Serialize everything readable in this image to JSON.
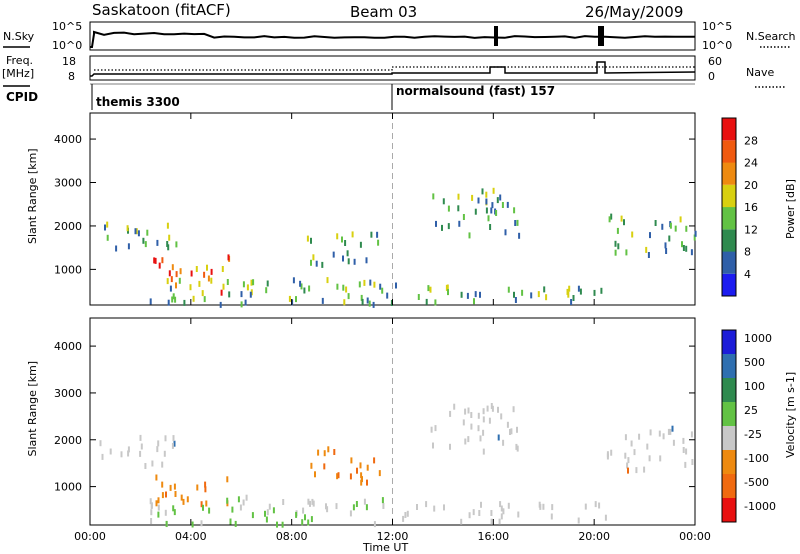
{
  "header": {
    "station": "Saskatoon (fitACF)",
    "beam": "Beam 03",
    "date": "26/May/2009"
  },
  "aux": {
    "nsky_label": "N.Sky",
    "nsky_ticks": [
      "10^5",
      "10^0"
    ],
    "nsearch_label": "N.Search",
    "nsearch_ticks": [
      "10^5",
      "10^0"
    ],
    "freq_label": "Freq.",
    "freq_unit": "[MHz]",
    "freq_ticks": [
      "18",
      "8"
    ],
    "nave_label": "Nave",
    "nave_ticks": [
      "60",
      "0"
    ],
    "cpid_label": "CPID",
    "cpid_programs": [
      {
        "name": "themis 3300",
        "start_hour": 0
      },
      {
        "name": "normalsound (fast) 157",
        "start_hour": 12
      }
    ]
  },
  "x_axis": {
    "label": "Time UT",
    "ticks": [
      "00:00",
      "04:00",
      "08:00",
      "12:00",
      "16:00",
      "20:00",
      "00:00"
    ],
    "range_hours": [
      0,
      24
    ]
  },
  "chart_data": [
    {
      "type": "heatmap",
      "title": "",
      "xlabel": "",
      "ylabel": "Slant Range [km]",
      "yticks": [
        "1000",
        "2000",
        "3000",
        "4000"
      ],
      "ylim": [
        180,
        4600
      ],
      "colorbar": {
        "label": "Power [dB]",
        "ticks": [
          "4",
          "8",
          "12",
          "16",
          "20",
          "24",
          "28"
        ],
        "colors": [
          "#1c1cf0",
          "#2f5fa8",
          "#2f8a4f",
          "#62c244",
          "#d8d010",
          "#ee8a10",
          "#f05a10",
          "#e81010"
        ]
      },
      "scatter_regions": [
        {
          "x": [
            0.2,
            3.4
          ],
          "y": [
            1500,
            2150
          ],
          "level": "12-20"
        },
        {
          "x": [
            2.5,
            5.5
          ],
          "y": [
            500,
            1350
          ],
          "level": "20-28"
        },
        {
          "x": [
            2.0,
            12.0
          ],
          "y": [
            250,
            850
          ],
          "level": "8-16"
        },
        {
          "x": [
            8.6,
            11.5
          ],
          "y": [
            1150,
            1900
          ],
          "level": "12-20"
        },
        {
          "x": [
            12.0,
            20.5
          ],
          "y": [
            300,
            700
          ],
          "level": "12-20"
        },
        {
          "x": [
            13.5,
            17.0
          ],
          "y": [
            1800,
            2900
          ],
          "level": "4-12"
        },
        {
          "x": [
            20.5,
            24.0
          ],
          "y": [
            1400,
            2300
          ],
          "level": "8-16"
        }
      ]
    },
    {
      "type": "heatmap",
      "title": "",
      "xlabel": "",
      "ylabel": "Slant Range [km]",
      "yticks": [
        "1000",
        "2000",
        "3000",
        "4000"
      ],
      "ylim": [
        180,
        4600
      ],
      "colorbar": {
        "label": "Velocity [m s-1]",
        "ticks": [
          "1000",
          "500",
          "100",
          "25",
          "-25",
          "-100",
          "-500",
          "-1000"
        ],
        "colors": [
          "#1c1cd8",
          "#2f6fb0",
          "#2f8a4f",
          "#62c244",
          "#c8c8c8",
          "#ee8a10",
          "#f06a10",
          "#e81010"
        ]
      },
      "scatter_regions": [
        {
          "x": [
            0.2,
            3.4
          ],
          "y": [
            1500,
            2150
          ],
          "level": "25 to -25"
        },
        {
          "x": [
            2.5,
            5.5
          ],
          "y": [
            600,
            1300
          ],
          "level": "-100 to -500"
        },
        {
          "x": [
            2.0,
            12.0
          ],
          "y": [
            250,
            850
          ],
          "level": "25 to 100"
        },
        {
          "x": [
            8.6,
            11.5
          ],
          "y": [
            1150,
            1900
          ],
          "level": "-100 to -500"
        },
        {
          "x": [
            12.0,
            20.5
          ],
          "y": [
            300,
            700
          ],
          "level": "25 to -25"
        },
        {
          "x": [
            13.5,
            17.0
          ],
          "y": [
            1800,
            2900
          ],
          "level": "25 to -25"
        },
        {
          "x": [
            20.5,
            24.0
          ],
          "y": [
            1400,
            2300
          ],
          "level": "25 to -25"
        }
      ]
    }
  ]
}
